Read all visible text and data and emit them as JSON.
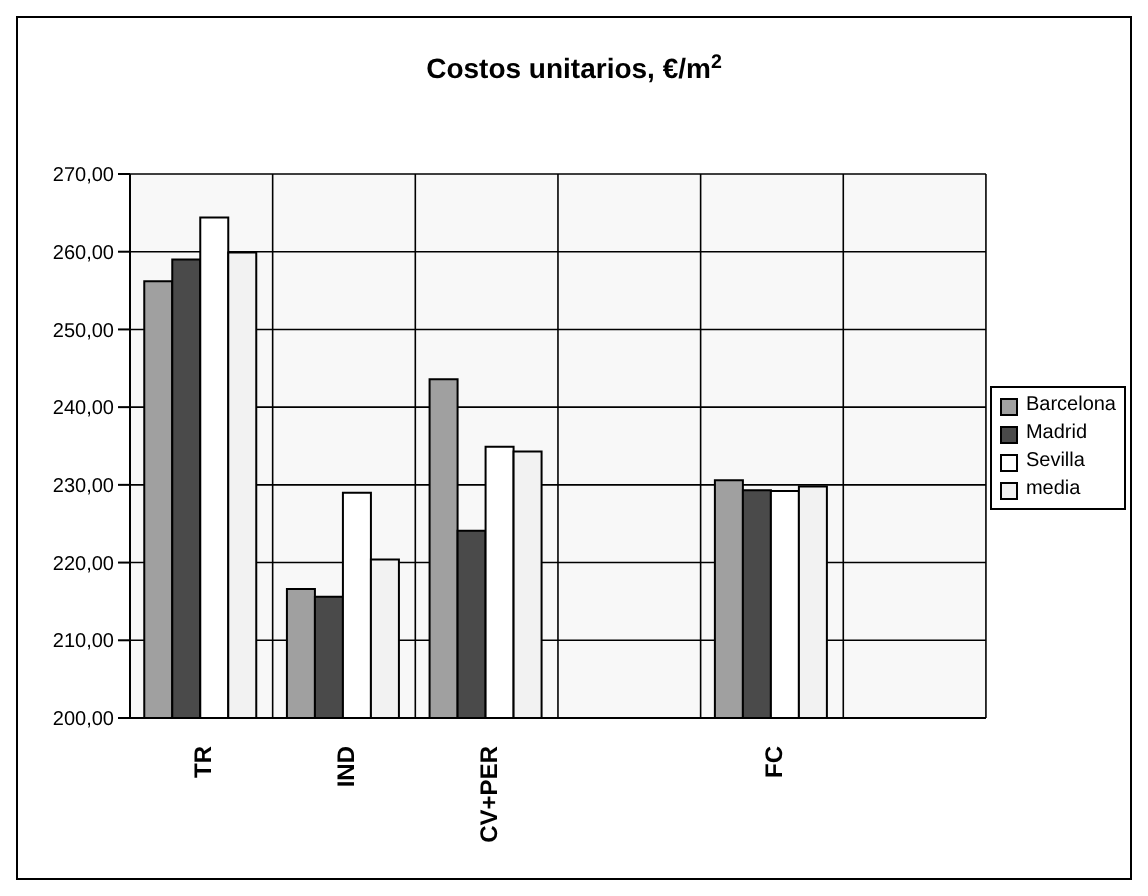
{
  "chart_data": {
    "type": "bar",
    "title": "Costos unitarios, €/m$^{2}$",
    "categories": [
      "TR",
      "IND",
      "CV+PER",
      null,
      "FC",
      null
    ],
    "series": [
      {
        "name": "Barcelona",
        "color": "#a0a0a0",
        "values": [
          256.2,
          216.6,
          243.6,
          null,
          230.6,
          null
        ]
      },
      {
        "name": "Madrid",
        "color": "#4a4a4a",
        "values": [
          259.0,
          215.6,
          224.1,
          null,
          229.3,
          null
        ]
      },
      {
        "name": "Sevilla",
        "color": "#ffffff",
        "values": [
          264.4,
          229.0,
          234.9,
          null,
          229.2,
          null
        ]
      },
      {
        "name": "media",
        "color": "#f2f2f2",
        "values": [
          259.9,
          220.4,
          234.3,
          null,
          229.8,
          null
        ]
      }
    ],
    "ylim": [
      200,
      270
    ],
    "yticks": [
      {
        "value": 200,
        "label": "200,00"
      },
      {
        "value": 210,
        "label": "210,00"
      },
      {
        "value": 220,
        "label": "220,00"
      },
      {
        "value": 230,
        "label": "230,00"
      },
      {
        "value": 240,
        "label": "240,00"
      },
      {
        "value": 250,
        "label": "250,00"
      },
      {
        "value": 260,
        "label": "260,00"
      },
      {
        "value": 270,
        "label": "270,00"
      }
    ],
    "grid": true,
    "legend": "right"
  }
}
